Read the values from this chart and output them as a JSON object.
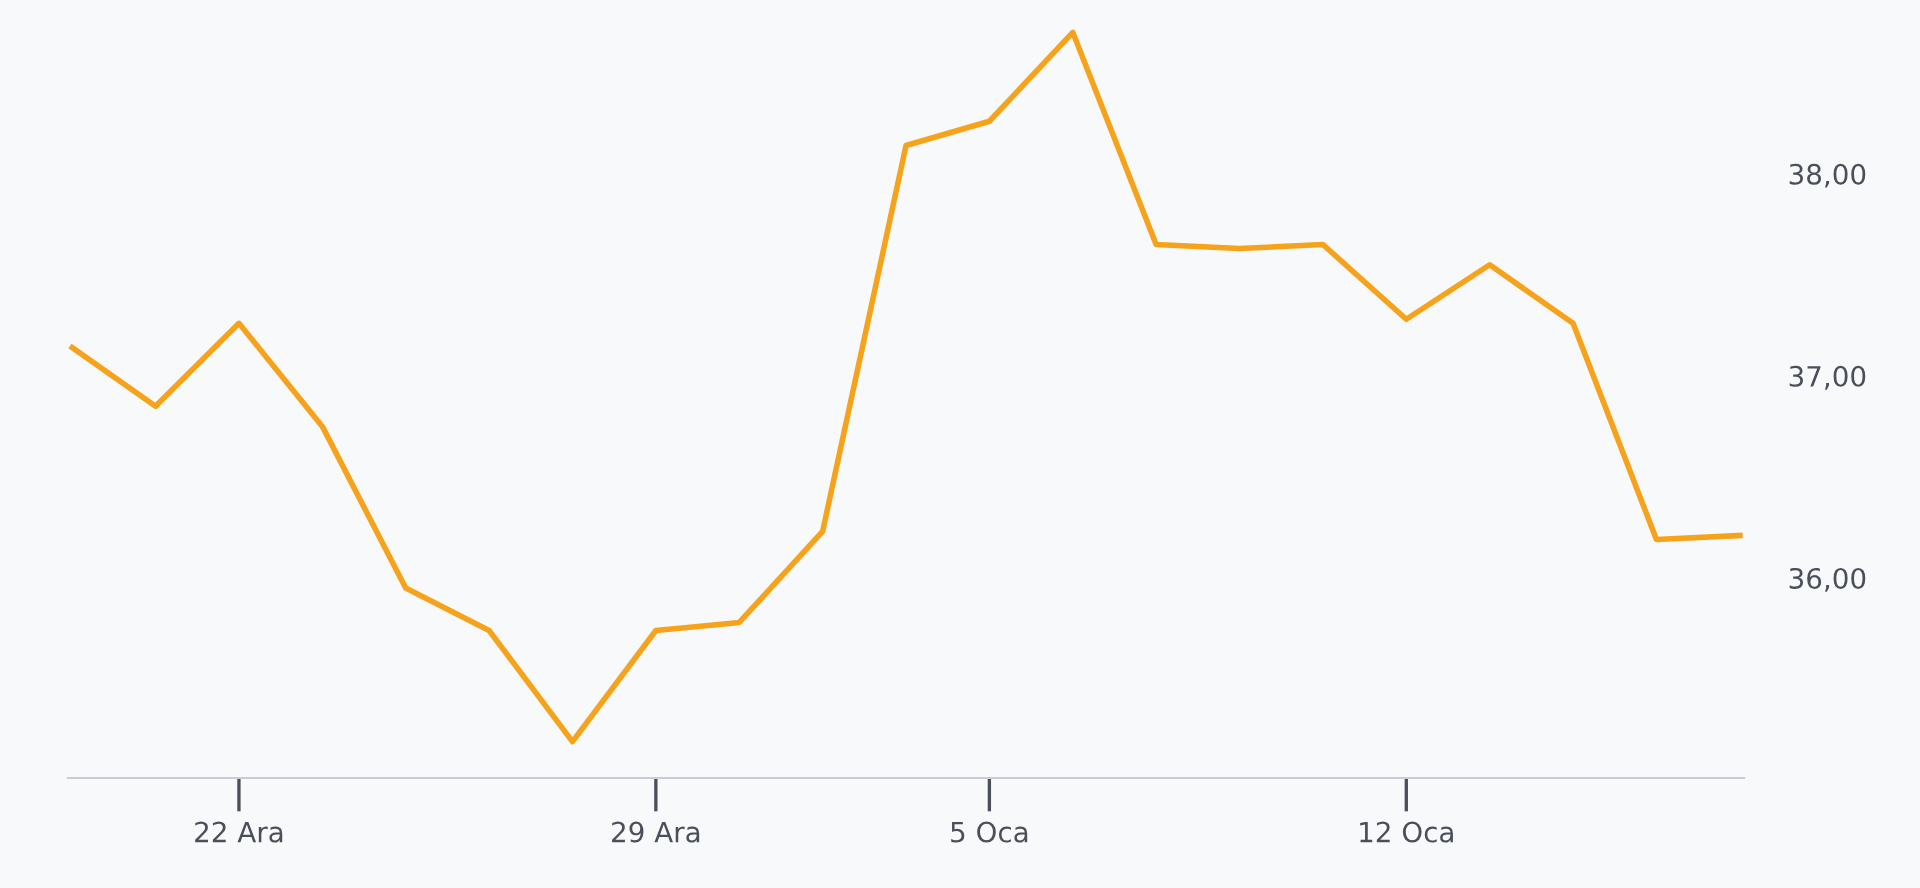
{
  "chart_data": {
    "type": "line",
    "categories": [
      null,
      null,
      "22 Ara",
      null,
      null,
      null,
      null,
      "29 Ara",
      null,
      null,
      null,
      "5 Oca",
      null,
      null,
      null,
      null,
      "12 Oca",
      null,
      null,
      null,
      null
    ],
    "series": [
      {
        "color": "#f7a21b",
        "values": [
          37.14,
          36.85,
          37.26,
          36.75,
          35.95,
          35.74,
          35.19,
          35.74,
          35.78,
          36.23,
          38.14,
          38.26,
          38.7,
          37.65,
          37.63,
          37.65,
          37.28,
          37.55,
          37.26,
          36.19,
          36.21
        ]
      }
    ],
    "ylim": [
      35.01,
      38.86
    ],
    "yticks": [
      {
        "value": 36,
        "label": "36,00"
      },
      {
        "value": 37,
        "label": "37,00"
      },
      {
        "value": 38,
        "label": "38,00"
      }
    ],
    "grid": false,
    "legend": false,
    "marker": "none",
    "line_style": "solid"
  }
}
